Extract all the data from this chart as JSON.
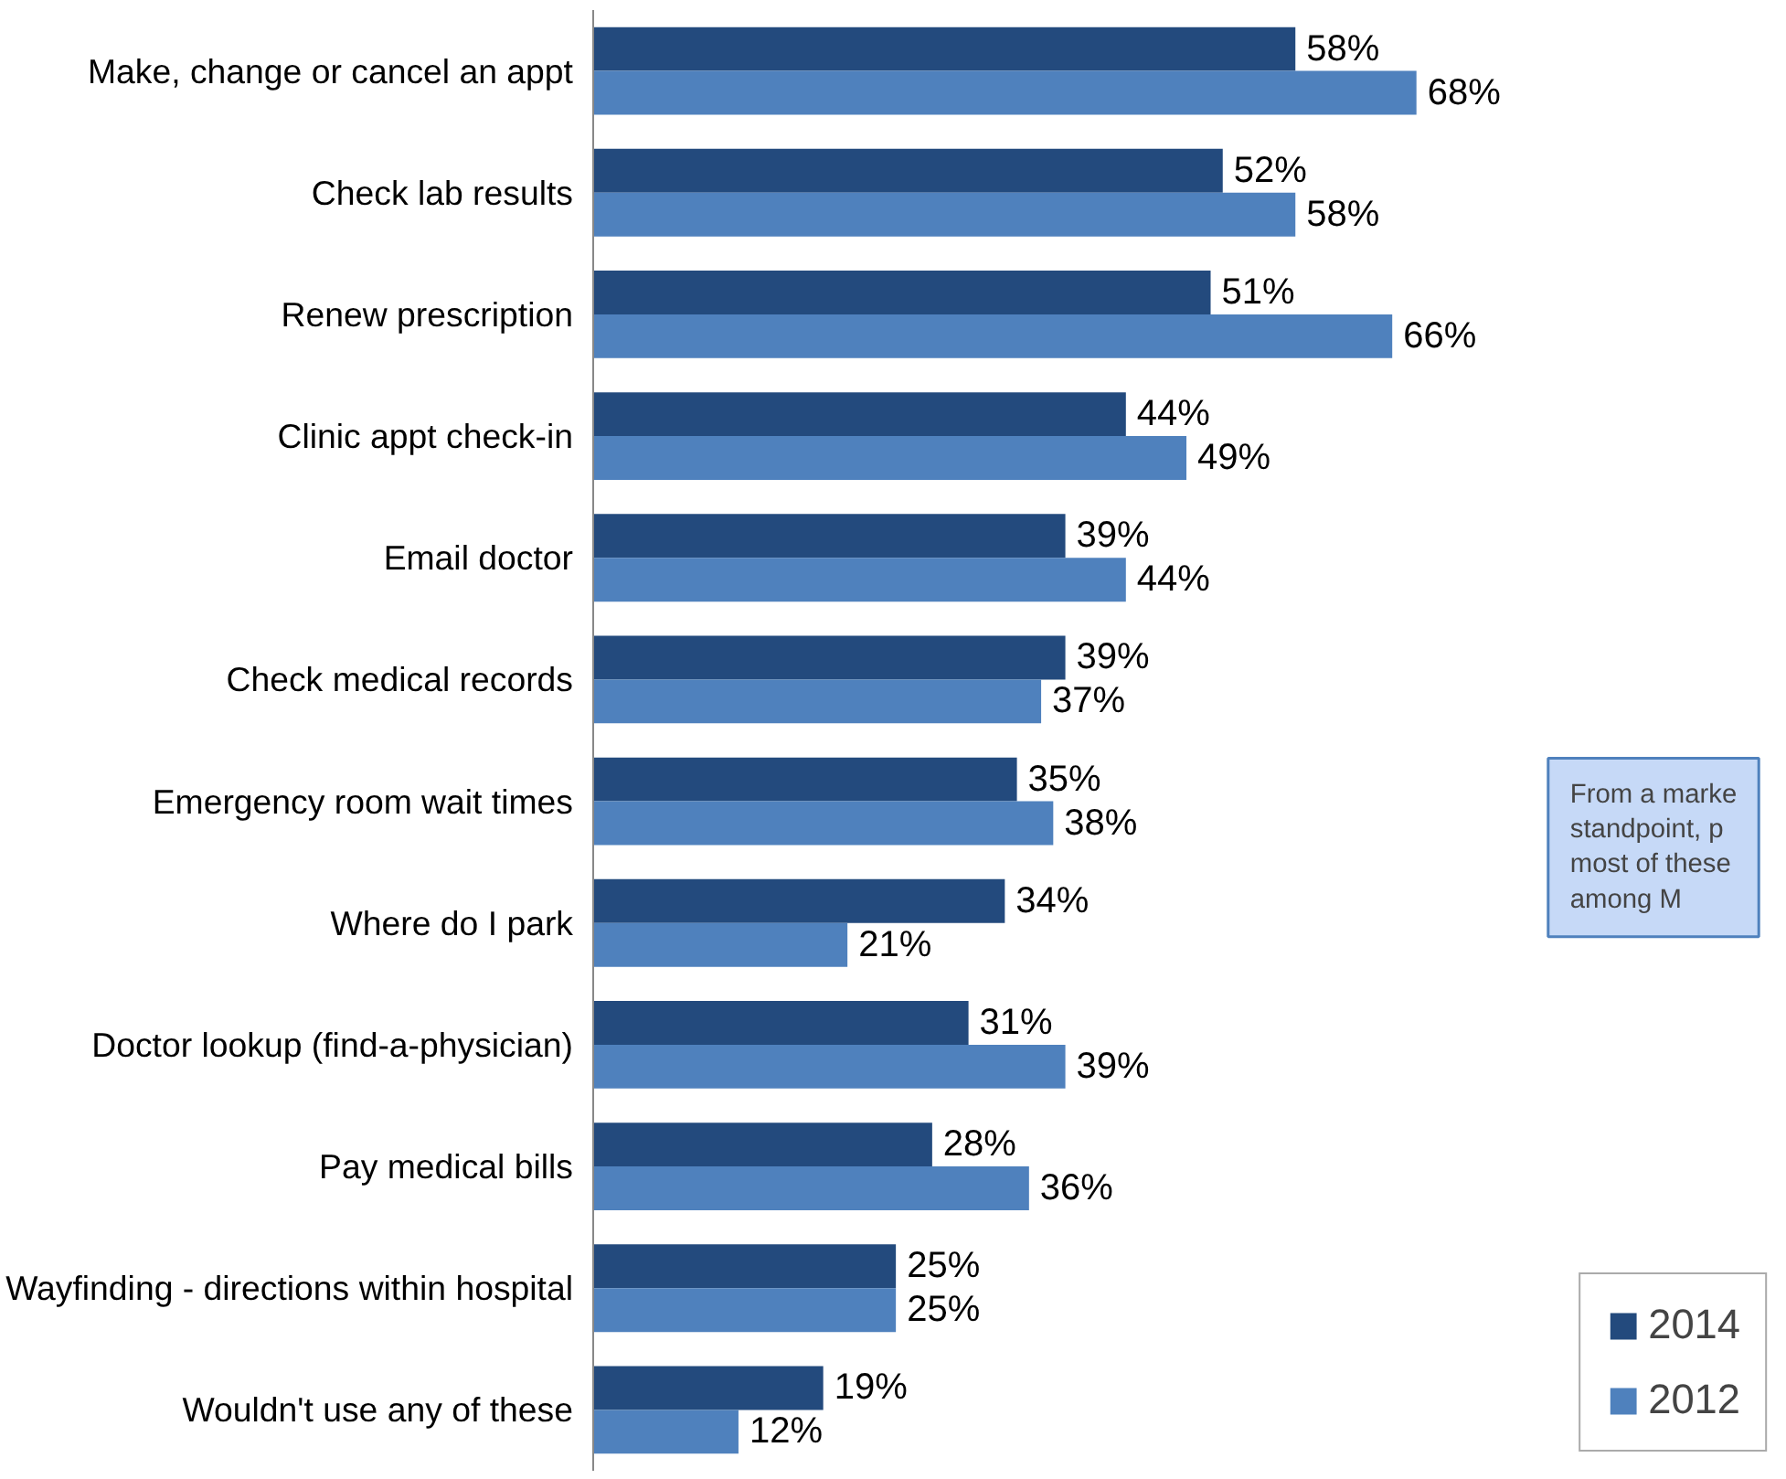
{
  "chart_data": {
    "type": "bar",
    "orientation": "horizontal",
    "categories": [
      "Make, change or cancel an appt",
      "Check lab results",
      "Renew prescription",
      "Clinic appt check-in",
      "Email doctor",
      "Check medical records",
      "Emergency room wait times",
      "Where do I park",
      "Doctor lookup (find-a-physician)",
      "Pay medical bills",
      "Wayfinding - directions within hospital",
      "Wouldn't use any of these"
    ],
    "series": [
      {
        "name": "2014",
        "color": "#234a7d",
        "values": [
          58,
          52,
          51,
          44,
          39,
          39,
          35,
          34,
          31,
          28,
          25,
          19
        ],
        "value_labels": [
          "58%",
          "52%",
          "51%",
          "44%",
          "39%",
          "39%",
          "35%",
          "34%",
          "31%",
          "28%",
          "25%",
          "19%"
        ]
      },
      {
        "name": "2012",
        "color": "#4f81bd",
        "values": [
          68,
          58,
          66,
          49,
          44,
          37,
          38,
          21,
          39,
          36,
          25,
          12
        ],
        "value_labels": [
          "68%",
          "58%",
          "66%",
          "49%",
          "44%",
          "37%",
          "38%",
          "21%",
          "39%",
          "36%",
          "25%",
          "12%"
        ]
      }
    ],
    "annotations": [
      "From a marke\nstandpoint, p\nmost of these\namong M"
    ],
    "legend": "bottom right",
    "grid": false
  }
}
